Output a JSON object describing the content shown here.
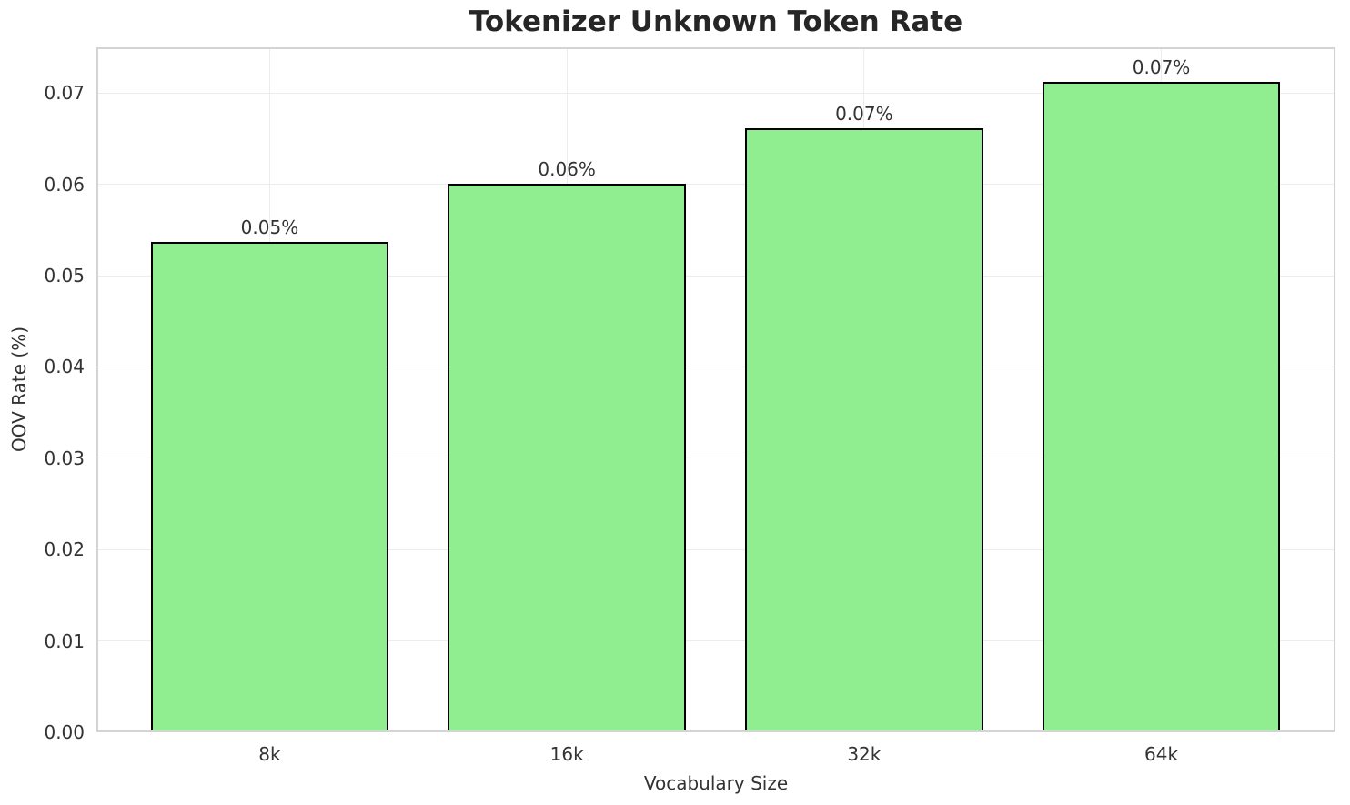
{
  "chart_data": {
    "type": "bar",
    "title": "Tokenizer Unknown Token Rate",
    "xlabel": "Vocabulary Size",
    "ylabel": "OOV Rate (%)",
    "categories": [
      "8k",
      "16k",
      "32k",
      "64k"
    ],
    "values": [
      0.0537,
      0.0601,
      0.0661,
      0.0712
    ],
    "bar_labels": [
      "0.05%",
      "0.06%",
      "0.07%",
      "0.07%"
    ],
    "yticks": [
      "0.00",
      "0.01",
      "0.02",
      "0.03",
      "0.04",
      "0.05",
      "0.06",
      "0.07"
    ],
    "ytick_step": 0.01,
    "ylim": [
      0,
      0.075
    ],
    "xlim": [
      -0.583,
      3.586
    ],
    "bar_width_units": 0.8,
    "grid": true,
    "legend": "none",
    "colors": {
      "bar_fill": "#90ee90",
      "bar_edge": "#000000",
      "grid_line": "#ececec",
      "spine": "#d4d4d4",
      "tick_text": "#333333",
      "title_text": "#262626",
      "background": "#ffffff"
    }
  }
}
